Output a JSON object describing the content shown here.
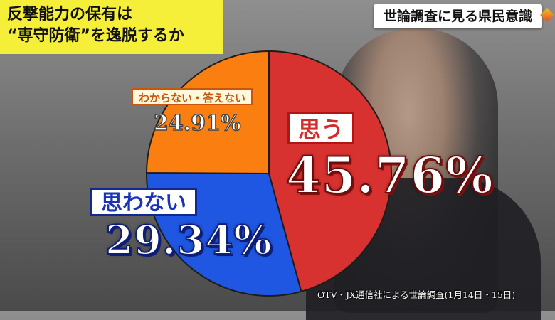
{
  "title": "反撃能力の保有は\n“専守防衛”を逸脱するか",
  "source_tag": "世論調査に見る県民意識",
  "footnote": "OTV・JX通信社による世論調査(1月14日・15日)",
  "chart_data": {
    "type": "pie",
    "slices": [
      {
        "label": "思う",
        "value": 45.76,
        "value_text": "45.76%",
        "color": "#d83230"
      },
      {
        "label": "思わない",
        "value": 29.34,
        "value_text": "29.34%",
        "color": "#1f57e3"
      },
      {
        "label": "わからない・答えない",
        "value": 24.91,
        "value_text": "24.91%",
        "color": "#fb7e11"
      }
    ],
    "start_angle_deg": 0,
    "direction": "clockwise"
  }
}
